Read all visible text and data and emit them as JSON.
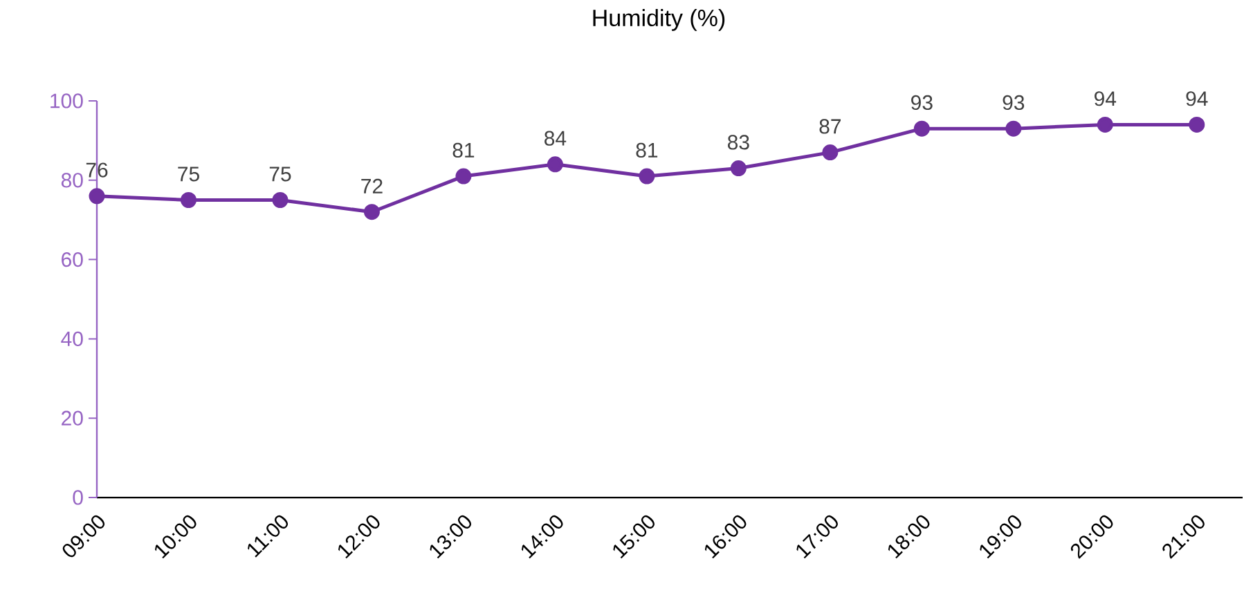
{
  "chart_data": {
    "type": "line",
    "title": "Humidity (%)",
    "categories": [
      "09:00",
      "10:00",
      "11:00",
      "12:00",
      "13:00",
      "14:00",
      "15:00",
      "16:00",
      "17:00",
      "18:00",
      "19:00",
      "20:00",
      "21:00"
    ],
    "series": [
      {
        "color": "#7030a0",
        "values": [
          76,
          75,
          75,
          72,
          81,
          84,
          81,
          83,
          87,
          93,
          93,
          94,
          94
        ]
      }
    ],
    "ylim": [
      0,
      100
    ],
    "yticks": [
      0,
      20,
      40,
      60,
      80,
      100
    ],
    "data_labels": true,
    "marker": "circle",
    "line_style": "solid"
  }
}
